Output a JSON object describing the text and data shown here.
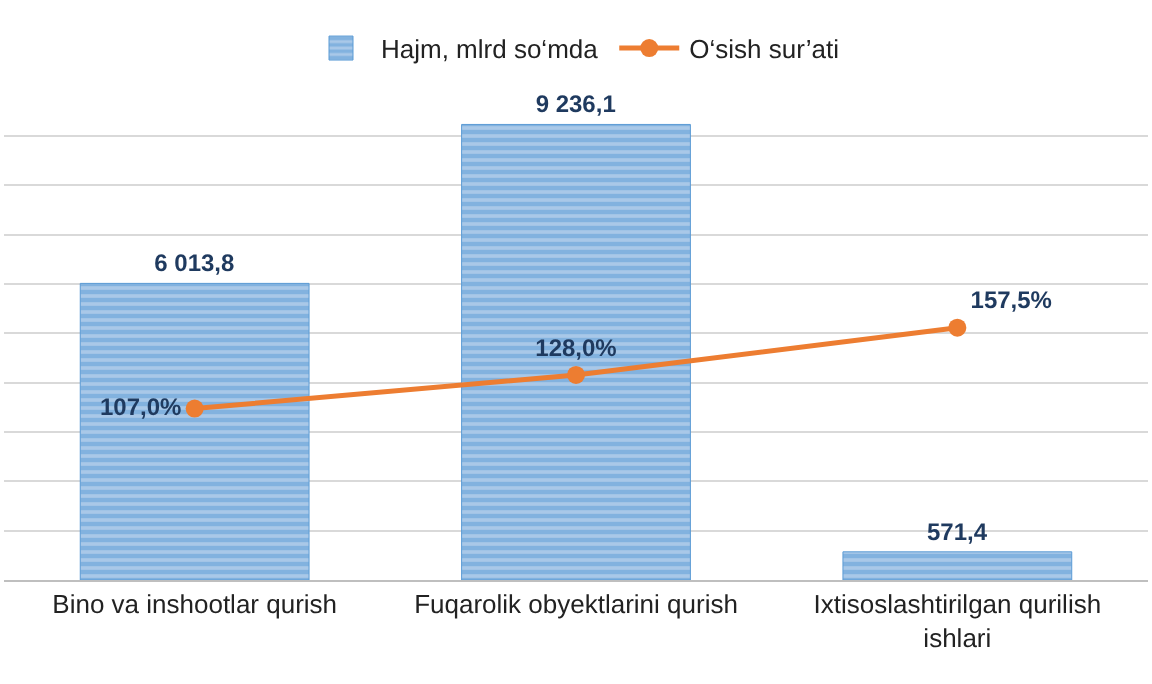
{
  "chart_data": {
    "type": "bar",
    "categories": [
      "Bino va inshootlar qurish",
      "Fuqarolik obyektlarini qurish",
      "Ixtisoslashtirilgan qurilish ishlari"
    ],
    "series": [
      {
        "name": "Hajm, mlrd so‘mda",
        "color": "#5b9bd5",
        "values": [
          6013.8,
          9236.1,
          571.4
        ],
        "value_labels": [
          "6 013,8",
          "9 236,1",
          "571,4"
        ]
      },
      {
        "name": "O‘sish sur’ati",
        "type": "line",
        "axis": "y2",
        "color": "#ed7d31",
        "values": [
          107.0,
          128.0,
          157.5
        ],
        "value_labels": [
          "107,0%",
          "128,0%",
          "157,5%"
        ]
      }
    ],
    "tick_labels": "x",
    "grid": "y",
    "legend": "top",
    "marker": "circle",
    "line_style": "solid"
  }
}
